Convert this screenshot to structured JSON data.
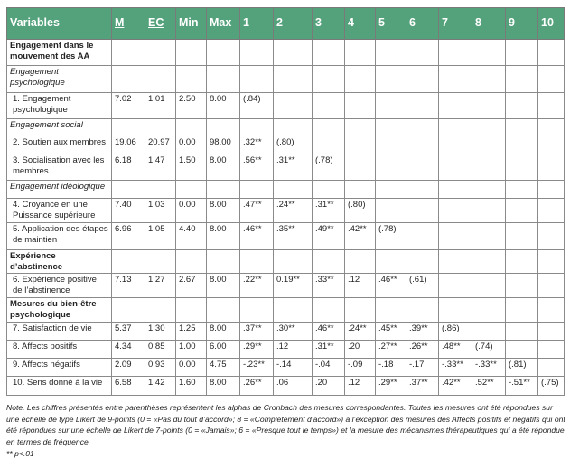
{
  "headers": [
    "Variables",
    "M",
    "EC",
    "Min",
    "Max",
    "1",
    "2",
    "3",
    "4",
    "5",
    "6",
    "7",
    "8",
    "9",
    "10"
  ],
  "header_color": "#54a27b",
  "rows": [
    {
      "type": "sec",
      "label": "Engagement dans le mouvement des AA",
      "cells": []
    },
    {
      "type": "it",
      "label": "Engagement psychologique",
      "cells": []
    },
    {
      "type": "var",
      "label": "1. Engagement psychologique",
      "cells": [
        "7.02",
        "1.01",
        "2.50",
        "8.00",
        "(.84)"
      ]
    },
    {
      "type": "it",
      "label": "Engagement social",
      "cells": []
    },
    {
      "type": "var",
      "label": "2. Soutien aux membres",
      "cells": [
        "19.06",
        "20.97",
        "0.00",
        "98.00",
        ".32**",
        "(.80)"
      ]
    },
    {
      "type": "var",
      "label": "3. Socialisation avec les membres",
      "cells": [
        "6.18",
        "1.47",
        "1.50",
        "8.00",
        ".56**",
        ".31**",
        "(.78)"
      ]
    },
    {
      "type": "it",
      "label": "Engagement idéologique",
      "cells": []
    },
    {
      "type": "var",
      "label": "4. Croyance en une Puissance supérieure",
      "cells": [
        "7.40",
        "1.03",
        "0.00",
        "8.00",
        ".47**",
        ".24**",
        ".31**",
        "(.80)"
      ]
    },
    {
      "type": "var",
      "label": "5. Application des étapes de maintien",
      "cells": [
        "6.96",
        "1.05",
        "4.40",
        "8.00",
        ".46**",
        ".35**",
        ".49**",
        ".42**",
        "(.78)"
      ]
    },
    {
      "type": "sec",
      "label": "Expérience d’abstinence",
      "cells": []
    },
    {
      "type": "var",
      "label": "6. Expérience positive de l’abstinence",
      "cells": [
        "7.13",
        "1.27",
        "2.67",
        "8.00",
        ".22**",
        "0.19**",
        ".33**",
        ".12",
        ".46**",
        "(.61)"
      ]
    },
    {
      "type": "sec",
      "label": "Mesures du bien-être psychologique",
      "cells": []
    },
    {
      "type": "var",
      "label": "7. Satisfaction de vie",
      "cells": [
        "5.37",
        "1.30",
        "1.25",
        "8.00",
        ".37**",
        ".30**",
        ".46**",
        ".24**",
        ".45**",
        ".39**",
        "(.86)"
      ]
    },
    {
      "type": "var",
      "label": "8. Affects positifs",
      "cells": [
        "4.34",
        "0.85",
        "1.00",
        "6.00",
        ".29**",
        ".12",
        ".31**",
        ".20",
        ".27**",
        ".26**",
        ".48**",
        "(.74)"
      ]
    },
    {
      "type": "var",
      "label": "9. Affects négatifs",
      "cells": [
        "2.09",
        "0.93",
        "0.00",
        "4.75",
        "-.23**",
        "-.14",
        "-.04",
        "-.09",
        "-.18",
        "-.17",
        "-.33**",
        "-.33**",
        "(.81)"
      ]
    },
    {
      "type": "var",
      "label": "10. Sens donné à la vie",
      "cells": [
        "6.58",
        "1.42",
        "1.60",
        "8.00",
        ".26**",
        ".06",
        ".20",
        ".12",
        ".29**",
        ".37**",
        ".42**",
        ".52**",
        "-.51**",
        "(.75)"
      ]
    }
  ],
  "note": "Note. Les chiffres présentés entre parenthèses représentent les alphas de Cronbach des mesures correspondantes. Toutes les mesures ont été répondues sur une échelle de type Likert de 9-points (0 = «Pas du tout d’accord»; 8 = «Complètement d’accord») à l’exception des mesures des Affects positifs et négatifs qui ont été répondues sur une échelle de Likert de 7-points (0 = «Jamais»; 6 = «Presque tout le temps») et la mesure des mécanismes thérapeutiques qui a été répondue en termes de fréquence.",
  "significance": "** p<.01"
}
